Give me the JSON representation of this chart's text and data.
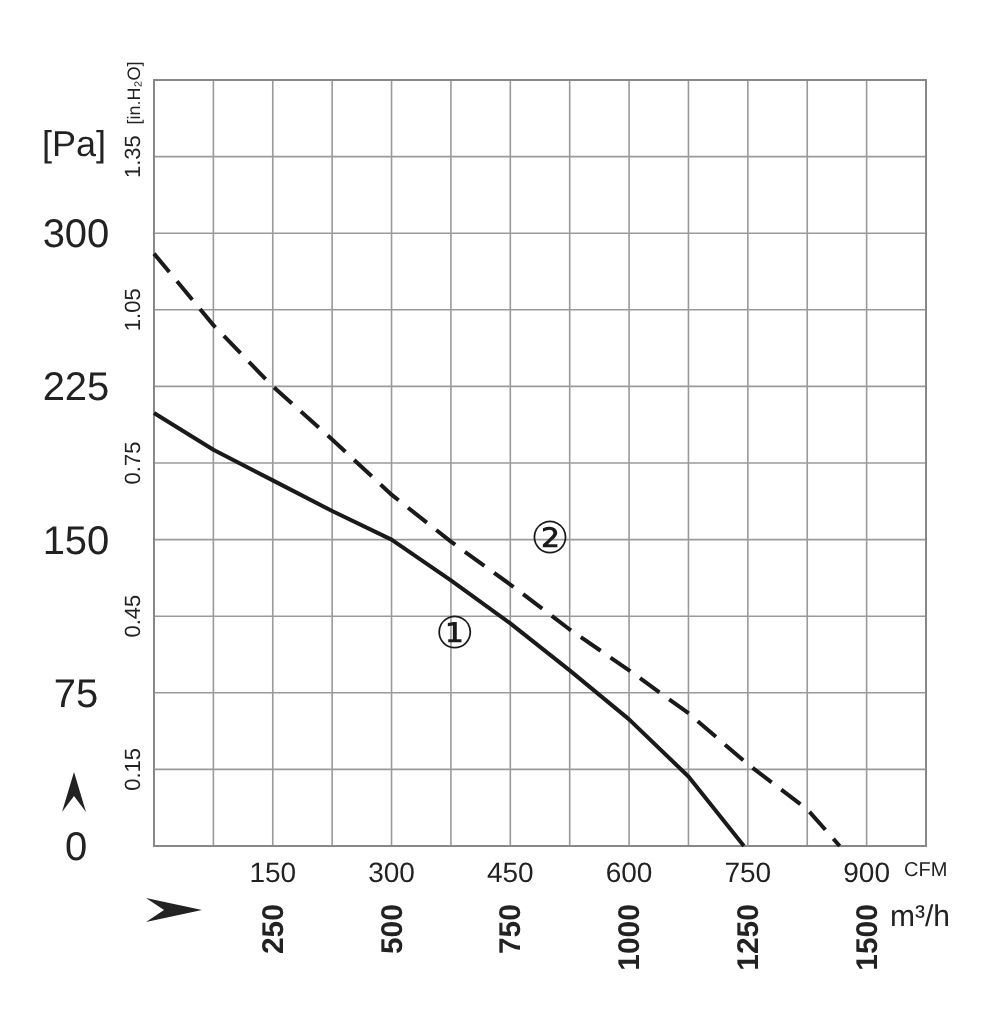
{
  "chart_data": {
    "type": "line",
    "ylabel": "[Pa]",
    "y2label": "[in.H₂O]",
    "xlabel": "CFM",
    "x2label": "m³/h",
    "xlim": [
      0,
      975
    ],
    "xticks": [
      {
        "value": 0,
        "label": null
      },
      {
        "value": 75,
        "label": null
      },
      150,
      {
        "value": 225,
        "label": null
      },
      300,
      {
        "value": 375,
        "label": null
      },
      450,
      {
        "value": 525,
        "label": null
      },
      600,
      {
        "value": 675,
        "label": null
      },
      750,
      {
        "value": 825,
        "label": null
      },
      900,
      {
        "value": 975,
        "label": null
      }
    ],
    "x2lim": [
      0,
      1625
    ],
    "x2ticks": [
      250,
      500,
      750,
      1000,
      1250,
      1500
    ],
    "ylim": [
      0,
      375
    ],
    "yticks": [
      0,
      75,
      150,
      225,
      300,
      {
        "value": 375,
        "label": null
      }
    ],
    "y2lim": [
      0,
      1.5
    ],
    "y2ticks": [
      0.15,
      0.45,
      0.75,
      1.05,
      1.35
    ],
    "grid": true,
    "marker": "none",
    "series": [
      {
        "name": "①",
        "color": "#1a1a1a",
        "line_style": "solid",
        "x": [
          0,
          75,
          150,
          225,
          300,
          375,
          450,
          525,
          600,
          675,
          745
        ],
        "values": [
          212,
          194,
          179,
          164,
          150,
          130,
          109,
          86,
          62,
          34,
          0
        ]
      },
      {
        "name": "②",
        "color": "#1a1a1a",
        "line_style": "dashed",
        "x": [
          0,
          75,
          150,
          225,
          300,
          375,
          450,
          525,
          600,
          675,
          750,
          825,
          866
        ],
        "values": [
          290,
          255,
          225,
          199,
          172,
          149,
          128,
          106,
          86,
          65,
          40,
          18,
          0
        ]
      }
    ]
  }
}
